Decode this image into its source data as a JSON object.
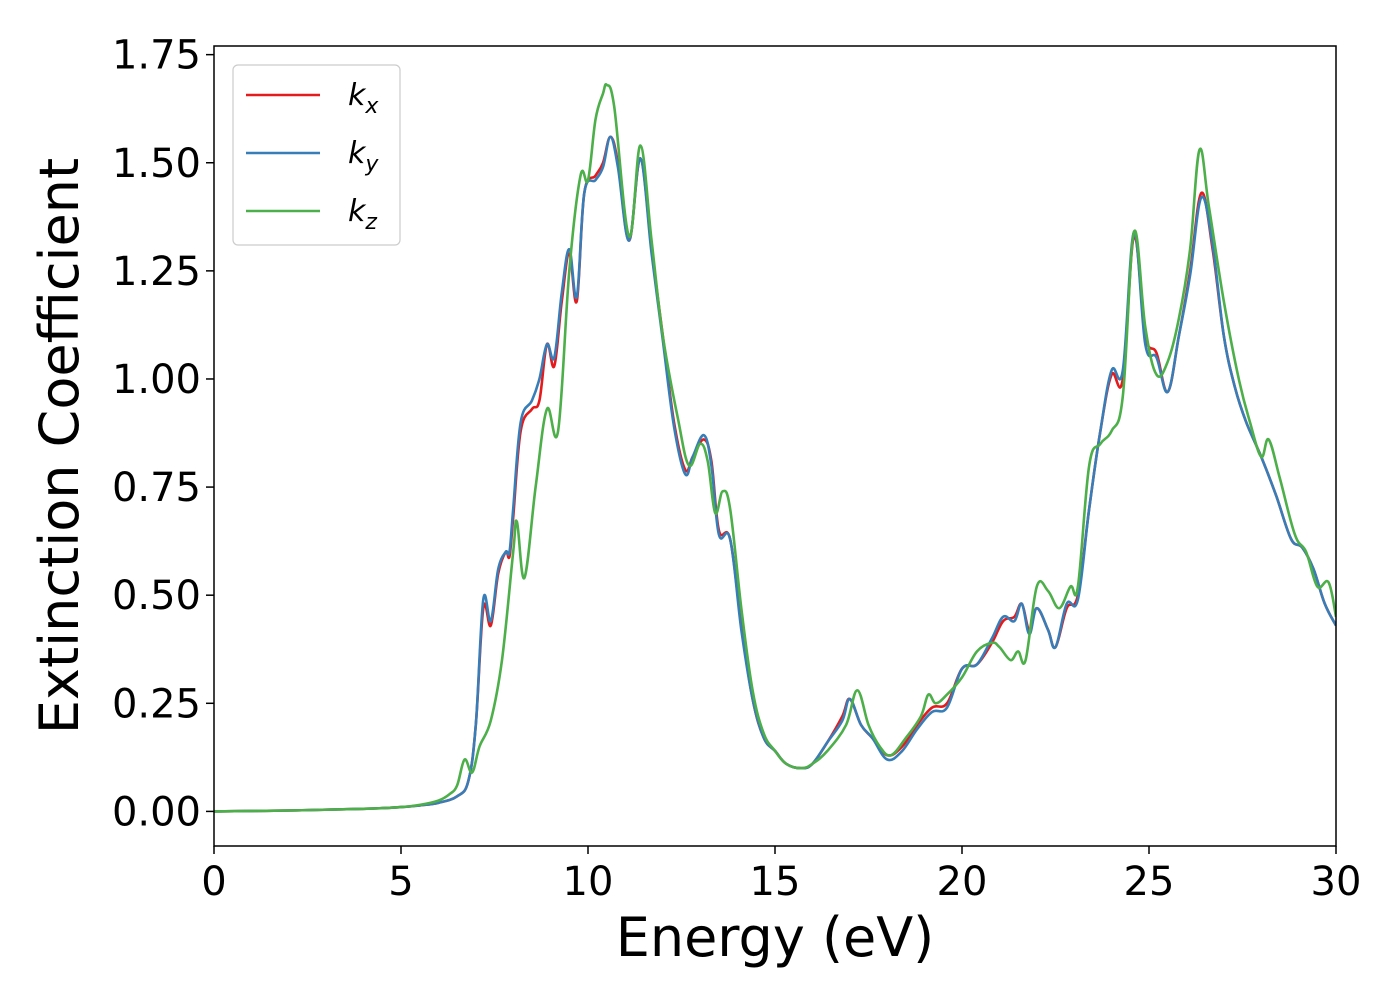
{
  "chart_data": {
    "type": "line",
    "title": "",
    "xlabel": "Energy (eV)",
    "ylabel": "Extinction Coefficient",
    "xlim": [
      0,
      30
    ],
    "ylim": [
      -0.08,
      1.77
    ],
    "xticks": [
      "0",
      "5",
      "10",
      "15",
      "20",
      "25",
      "30"
    ],
    "yticks": [
      "0.00",
      "0.25",
      "0.50",
      "0.75",
      "1.00",
      "1.25",
      "1.50",
      "1.75"
    ],
    "grid": false,
    "legend_position": "top-left",
    "series": [
      {
        "name": "k",
        "subscript": "x",
        "color": "#e41a1c",
        "points": [
          [
            0,
            0
          ],
          [
            2,
            0.002
          ],
          [
            4,
            0.006
          ],
          [
            5,
            0.01
          ],
          [
            5.5,
            0.014
          ],
          [
            6,
            0.02
          ],
          [
            6.5,
            0.035
          ],
          [
            6.8,
            0.07
          ],
          [
            7.0,
            0.2
          ],
          [
            7.2,
            0.47
          ],
          [
            7.4,
            0.43
          ],
          [
            7.6,
            0.55
          ],
          [
            7.8,
            0.6
          ],
          [
            7.9,
            0.59
          ],
          [
            8.0,
            0.68
          ],
          [
            8.2,
            0.88
          ],
          [
            8.5,
            0.93
          ],
          [
            8.7,
            0.95
          ],
          [
            8.9,
            1.08
          ],
          [
            9.1,
            1.03
          ],
          [
            9.3,
            1.18
          ],
          [
            9.5,
            1.29
          ],
          [
            9.7,
            1.18
          ],
          [
            9.9,
            1.43
          ],
          [
            10.2,
            1.47
          ],
          [
            10.4,
            1.5
          ],
          [
            10.6,
            1.56
          ],
          [
            10.8,
            1.5
          ],
          [
            11.1,
            1.32
          ],
          [
            11.4,
            1.51
          ],
          [
            11.7,
            1.3
          ],
          [
            12.0,
            1.1
          ],
          [
            12.3,
            0.9
          ],
          [
            12.6,
            0.79
          ],
          [
            12.8,
            0.82
          ],
          [
            13.1,
            0.86
          ],
          [
            13.3,
            0.81
          ],
          [
            13.5,
            0.65
          ],
          [
            13.8,
            0.63
          ],
          [
            14.1,
            0.43
          ],
          [
            14.4,
            0.26
          ],
          [
            14.7,
            0.17
          ],
          [
            15.0,
            0.14
          ],
          [
            15.3,
            0.11
          ],
          [
            15.7,
            0.1
          ],
          [
            16.0,
            0.11
          ],
          [
            16.4,
            0.16
          ],
          [
            16.8,
            0.22
          ],
          [
            17.0,
            0.26
          ],
          [
            17.3,
            0.2
          ],
          [
            17.6,
            0.17
          ],
          [
            18.0,
            0.13
          ],
          [
            18.4,
            0.15
          ],
          [
            18.8,
            0.2
          ],
          [
            19.2,
            0.24
          ],
          [
            19.6,
            0.25
          ],
          [
            20.0,
            0.33
          ],
          [
            20.4,
            0.34
          ],
          [
            20.8,
            0.39
          ],
          [
            21.1,
            0.44
          ],
          [
            21.4,
            0.45
          ],
          [
            21.6,
            0.48
          ],
          [
            21.8,
            0.42
          ],
          [
            22.0,
            0.47
          ],
          [
            22.3,
            0.42
          ],
          [
            22.5,
            0.38
          ],
          [
            22.8,
            0.47
          ],
          [
            23.1,
            0.5
          ],
          [
            23.4,
            0.7
          ],
          [
            23.7,
            0.88
          ],
          [
            24.0,
            1.01
          ],
          [
            24.3,
            1.0
          ],
          [
            24.6,
            1.33
          ],
          [
            24.9,
            1.1
          ],
          [
            25.2,
            1.06
          ],
          [
            25.5,
            0.97
          ],
          [
            25.8,
            1.1
          ],
          [
            26.1,
            1.25
          ],
          [
            26.4,
            1.43
          ],
          [
            26.7,
            1.3
          ],
          [
            27.0,
            1.1
          ],
          [
            27.3,
            0.98
          ],
          [
            27.6,
            0.9
          ],
          [
            28.0,
            0.82
          ],
          [
            28.4,
            0.73
          ],
          [
            28.8,
            0.63
          ],
          [
            29.1,
            0.61
          ],
          [
            29.4,
            0.56
          ],
          [
            29.7,
            0.48
          ],
          [
            30,
            0.43
          ]
        ]
      },
      {
        "name": "k",
        "subscript": "y",
        "color": "#377eb8",
        "points": [
          [
            0,
            0
          ],
          [
            2,
            0.002
          ],
          [
            4,
            0.006
          ],
          [
            5,
            0.01
          ],
          [
            5.5,
            0.014
          ],
          [
            6,
            0.02
          ],
          [
            6.5,
            0.035
          ],
          [
            6.8,
            0.07
          ],
          [
            7.0,
            0.2
          ],
          [
            7.2,
            0.49
          ],
          [
            7.4,
            0.44
          ],
          [
            7.6,
            0.56
          ],
          [
            7.8,
            0.6
          ],
          [
            7.9,
            0.6
          ],
          [
            8.0,
            0.7
          ],
          [
            8.2,
            0.9
          ],
          [
            8.5,
            0.95
          ],
          [
            8.7,
            1.0
          ],
          [
            8.9,
            1.08
          ],
          [
            9.1,
            1.05
          ],
          [
            9.3,
            1.2
          ],
          [
            9.5,
            1.3
          ],
          [
            9.7,
            1.19
          ],
          [
            9.9,
            1.43
          ],
          [
            10.2,
            1.46
          ],
          [
            10.4,
            1.49
          ],
          [
            10.6,
            1.56
          ],
          [
            10.8,
            1.49
          ],
          [
            11.1,
            1.32
          ],
          [
            11.4,
            1.51
          ],
          [
            11.7,
            1.29
          ],
          [
            12.0,
            1.09
          ],
          [
            12.3,
            0.89
          ],
          [
            12.6,
            0.78
          ],
          [
            12.8,
            0.82
          ],
          [
            13.1,
            0.87
          ],
          [
            13.3,
            0.8
          ],
          [
            13.5,
            0.64
          ],
          [
            13.8,
            0.63
          ],
          [
            14.1,
            0.42
          ],
          [
            14.4,
            0.26
          ],
          [
            14.7,
            0.17
          ],
          [
            15.0,
            0.14
          ],
          [
            15.3,
            0.11
          ],
          [
            15.7,
            0.1
          ],
          [
            16.0,
            0.11
          ],
          [
            16.4,
            0.16
          ],
          [
            16.8,
            0.21
          ],
          [
            17.0,
            0.26
          ],
          [
            17.3,
            0.2
          ],
          [
            17.6,
            0.17
          ],
          [
            18.0,
            0.12
          ],
          [
            18.4,
            0.14
          ],
          [
            18.8,
            0.19
          ],
          [
            19.2,
            0.23
          ],
          [
            19.6,
            0.24
          ],
          [
            20.0,
            0.33
          ],
          [
            20.4,
            0.34
          ],
          [
            20.8,
            0.4
          ],
          [
            21.1,
            0.45
          ],
          [
            21.4,
            0.44
          ],
          [
            21.6,
            0.48
          ],
          [
            21.8,
            0.41
          ],
          [
            22.0,
            0.47
          ],
          [
            22.3,
            0.42
          ],
          [
            22.5,
            0.38
          ],
          [
            22.8,
            0.48
          ],
          [
            23.1,
            0.49
          ],
          [
            23.4,
            0.7
          ],
          [
            23.7,
            0.88
          ],
          [
            24.0,
            1.02
          ],
          [
            24.3,
            1.02
          ],
          [
            24.6,
            1.34
          ],
          [
            24.9,
            1.08
          ],
          [
            25.2,
            1.05
          ],
          [
            25.5,
            0.97
          ],
          [
            25.8,
            1.1
          ],
          [
            26.1,
            1.24
          ],
          [
            26.4,
            1.42
          ],
          [
            26.7,
            1.31
          ],
          [
            27.0,
            1.1
          ],
          [
            27.3,
            0.98
          ],
          [
            27.6,
            0.9
          ],
          [
            28.0,
            0.82
          ],
          [
            28.4,
            0.73
          ],
          [
            28.8,
            0.63
          ],
          [
            29.1,
            0.61
          ],
          [
            29.4,
            0.56
          ],
          [
            29.7,
            0.48
          ],
          [
            30,
            0.43
          ]
        ]
      },
      {
        "name": "k",
        "subscript": "z",
        "color": "#4daf4a",
        "points": [
          [
            0,
            0
          ],
          [
            2,
            0.002
          ],
          [
            4,
            0.006
          ],
          [
            5,
            0.01
          ],
          [
            5.5,
            0.015
          ],
          [
            6,
            0.025
          ],
          [
            6.3,
            0.04
          ],
          [
            6.5,
            0.06
          ],
          [
            6.7,
            0.12
          ],
          [
            6.9,
            0.09
          ],
          [
            7.1,
            0.15
          ],
          [
            7.4,
            0.21
          ],
          [
            7.7,
            0.35
          ],
          [
            8.0,
            0.6
          ],
          [
            8.1,
            0.67
          ],
          [
            8.3,
            0.54
          ],
          [
            8.6,
            0.75
          ],
          [
            8.9,
            0.93
          ],
          [
            9.2,
            0.88
          ],
          [
            9.5,
            1.25
          ],
          [
            9.8,
            1.47
          ],
          [
            10.0,
            1.46
          ],
          [
            10.2,
            1.6
          ],
          [
            10.4,
            1.66
          ],
          [
            10.5,
            1.68
          ],
          [
            10.7,
            1.63
          ],
          [
            11.1,
            1.33
          ],
          [
            11.4,
            1.54
          ],
          [
            11.7,
            1.32
          ],
          [
            12.0,
            1.1
          ],
          [
            12.4,
            0.91
          ],
          [
            12.7,
            0.8
          ],
          [
            13.0,
            0.85
          ],
          [
            13.2,
            0.81
          ],
          [
            13.4,
            0.69
          ],
          [
            13.6,
            0.74
          ],
          [
            13.8,
            0.7
          ],
          [
            14.1,
            0.47
          ],
          [
            14.4,
            0.28
          ],
          [
            14.7,
            0.18
          ],
          [
            15.0,
            0.14
          ],
          [
            15.3,
            0.11
          ],
          [
            15.7,
            0.1
          ],
          [
            16.0,
            0.11
          ],
          [
            16.4,
            0.14
          ],
          [
            16.9,
            0.2
          ],
          [
            17.2,
            0.28
          ],
          [
            17.5,
            0.2
          ],
          [
            17.8,
            0.15
          ],
          [
            18.1,
            0.13
          ],
          [
            18.5,
            0.17
          ],
          [
            18.9,
            0.22
          ],
          [
            19.1,
            0.27
          ],
          [
            19.3,
            0.25
          ],
          [
            19.6,
            0.27
          ],
          [
            20.0,
            0.31
          ],
          [
            20.4,
            0.37
          ],
          [
            20.8,
            0.39
          ],
          [
            21.0,
            0.38
          ],
          [
            21.3,
            0.35
          ],
          [
            21.5,
            0.37
          ],
          [
            21.7,
            0.35
          ],
          [
            22.0,
            0.52
          ],
          [
            22.3,
            0.51
          ],
          [
            22.6,
            0.47
          ],
          [
            22.9,
            0.52
          ],
          [
            23.1,
            0.52
          ],
          [
            23.4,
            0.8
          ],
          [
            23.7,
            0.85
          ],
          [
            24.0,
            0.88
          ],
          [
            24.3,
            0.96
          ],
          [
            24.6,
            1.34
          ],
          [
            24.9,
            1.12
          ],
          [
            25.2,
            1.01
          ],
          [
            25.5,
            1.04
          ],
          [
            25.8,
            1.14
          ],
          [
            26.1,
            1.3
          ],
          [
            26.35,
            1.53
          ],
          [
            26.6,
            1.4
          ],
          [
            27.0,
            1.18
          ],
          [
            27.4,
            1.0
          ],
          [
            27.7,
            0.9
          ],
          [
            28.0,
            0.82
          ],
          [
            28.2,
            0.86
          ],
          [
            28.5,
            0.77
          ],
          [
            28.9,
            0.64
          ],
          [
            29.2,
            0.6
          ],
          [
            29.5,
            0.52
          ],
          [
            29.8,
            0.53
          ],
          [
            30,
            0.45
          ]
        ]
      }
    ]
  }
}
